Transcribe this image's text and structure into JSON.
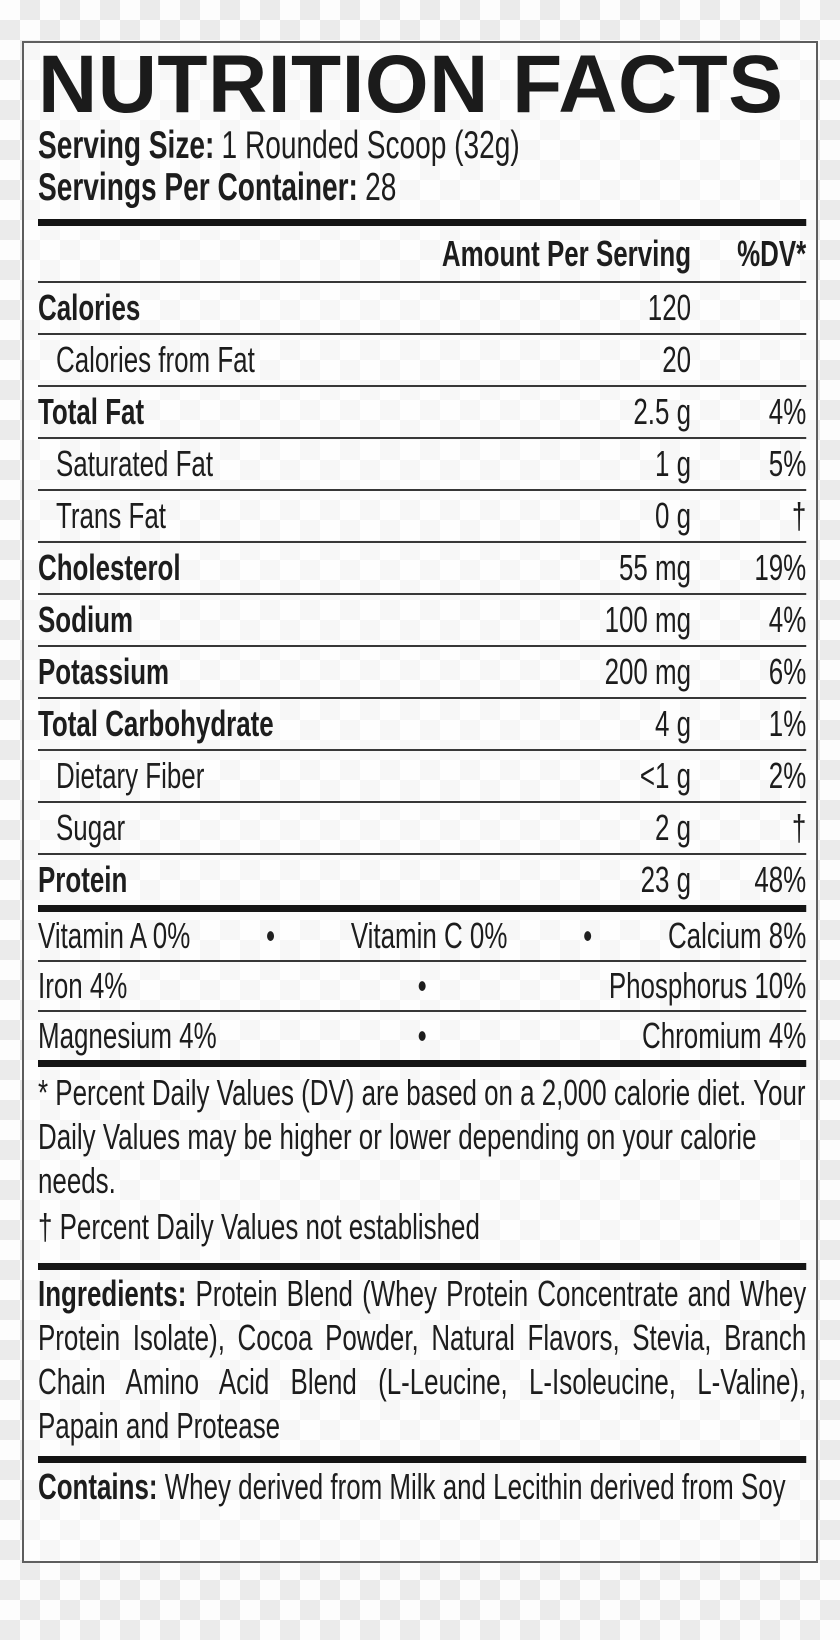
{
  "image": {
    "background": "transparency-checkerboard"
  },
  "colors": {
    "checker_light": "#fdfdfd",
    "checker_dark": "#ebebeb",
    "label_border": "#5e5e5e",
    "text": "#1d1d1d",
    "rule_thick": "#141414",
    "rule_thin": "#383838"
  },
  "label": {
    "title": "NUTRITION FACTS",
    "serving_size": {
      "label": "Serving Size:",
      "value": "1 Rounded Scoop (32g)"
    },
    "servings_per_container": {
      "label": "Servings Per Container:",
      "value": "28"
    },
    "columns": {
      "amount": "Amount Per Serving",
      "dv": "%DV*"
    },
    "rows": [
      {
        "name": "Calories",
        "amount": "120",
        "dv": ""
      },
      {
        "name": "Calories from Fat",
        "amount": "20",
        "dv": ""
      },
      {
        "name": "Total Fat",
        "amount": "2.5 g",
        "dv": "4%"
      },
      {
        "name": "Saturated Fat",
        "amount": "1 g",
        "dv": "5%"
      },
      {
        "name": "Trans Fat",
        "amount": "0 g",
        "dv": "†"
      },
      {
        "name": "Cholesterol",
        "amount": "55 mg",
        "dv": "19%"
      },
      {
        "name": "Sodium",
        "amount": "100 mg",
        "dv": "4%"
      },
      {
        "name": "Potassium",
        "amount": "200 mg",
        "dv": "6%"
      },
      {
        "name": "Total Carbohydrate",
        "amount": "4 g",
        "dv": "1%"
      },
      {
        "name": "Dietary Fiber",
        "amount": "<1 g",
        "dv": "2%"
      },
      {
        "name": "Sugar",
        "amount": "2 g",
        "dv": "†"
      },
      {
        "name": "Protein",
        "amount": "23 g",
        "dv": "48%"
      }
    ],
    "micros": {
      "bullet": "•",
      "row1": [
        "Vitamin A 0%",
        "Vitamin C 0%",
        "Calcium 8%"
      ],
      "row2": [
        "Iron 4%",
        "Phosphorus 10%"
      ],
      "row3": [
        "Magnesium 4%",
        "Chromium 4%"
      ]
    },
    "footnotes": {
      "dv": "* Percent Daily Values (DV) are based on a 2,000 calorie diet. Your Daily Values may be higher or lower depending on your calorie needs.",
      "dagger": "† Percent Daily Values not established"
    },
    "ingredients": {
      "label": "Ingredients:",
      "text": " Protein Blend (Whey Protein Concentrate and Whey Protein Isolate), Cocoa Powder, Natural Flavors, Stevia, Branch Chain Amino Acid Blend (L-Leucine, L-Isoleucine, L-Valine), Papain and Protease"
    },
    "contains": {
      "label": "Contains:",
      "text": " Whey derived from Milk and Lecithin derived from Soy"
    }
  }
}
